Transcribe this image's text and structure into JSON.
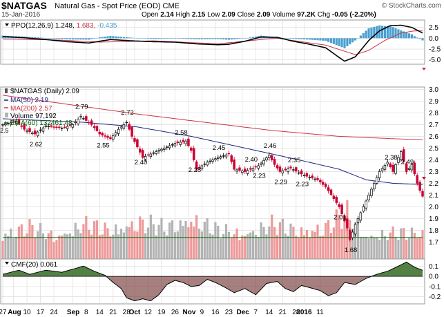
{
  "header": {
    "symbol": "$NATGAS",
    "name": "Natural Gas - Spot Price (EOD)",
    "exchange": "CME",
    "date": "15-Jan-2016",
    "open_label": "Open",
    "open": "2.14",
    "high_label": "High",
    "high": "2.15",
    "low_label": "Low",
    "low": "2.09",
    "close_label": "Close",
    "close": "2.09",
    "volume_label": "Volume",
    "volume": "97.2K",
    "chg_label": "Chg",
    "chg": "-0.05 (-2.20%)",
    "brand": "© StockCharts.com"
  },
  "colors": {
    "up": "#000000",
    "down": "#cc0033",
    "ma50": "#1a237e",
    "ma200": "#cc3344",
    "ema": "#006400",
    "vol_up": "#b3b3b3",
    "vol_down": "#ee9999",
    "hist": "#4a9fd0",
    "cmf_pos": "#4a7a3a",
    "cmf_neg": "#6a2a2a",
    "grid": "#d8d8d8"
  },
  "chart_data": [
    {
      "type": "line",
      "panel": "ppo",
      "legend": [
        "PPO(12,26,9) 1.248, 1.683, -0.435"
      ],
      "legend_parts": {
        "label": "PPO(12,26,9) 1.248,",
        "signal": "1.683,",
        "hist": "-0.435"
      },
      "ylim": [
        -6,
        4.2
      ],
      "yticks": [
        "2.5",
        "0.0",
        "-2.5",
        "-5.0"
      ],
      "ytick_values": [
        2.5,
        0,
        -2.5,
        -5
      ],
      "ppo_anchors": [
        [
          0,
          0.4
        ],
        [
          8,
          0.1
        ],
        [
          16,
          -0.3
        ],
        [
          24,
          -0.8
        ],
        [
          32,
          -1.1
        ],
        [
          40,
          -0.3
        ],
        [
          48,
          -0.6
        ],
        [
          56,
          -0.8
        ],
        [
          64,
          -0.9
        ],
        [
          72,
          -1.3
        ],
        [
          80,
          -1.5
        ],
        [
          84,
          -1.4
        ],
        [
          90,
          -0.7
        ],
        [
          96,
          0.3
        ],
        [
          102,
          0.2
        ],
        [
          108,
          -0.7
        ],
        [
          114,
          -1.4
        ],
        [
          120,
          -2.2
        ],
        [
          124,
          -4.0
        ],
        [
          127,
          -5.3
        ],
        [
          131,
          -4.3
        ],
        [
          136,
          -0.5
        ],
        [
          140,
          1.7
        ],
        [
          144,
          2.9
        ],
        [
          148,
          3.0
        ],
        [
          152,
          2.5
        ],
        [
          156,
          1.2
        ]
      ],
      "signal_anchors": [
        [
          0,
          -0.2
        ],
        [
          20,
          -0.4
        ],
        [
          36,
          -0.9
        ],
        [
          56,
          -0.6
        ],
        [
          80,
          -1.3
        ],
        [
          96,
          -0.3
        ],
        [
          102,
          0.0
        ],
        [
          112,
          -0.9
        ],
        [
          120,
          -1.6
        ],
        [
          126,
          -2.8
        ],
        [
          131,
          -3.8
        ],
        [
          136,
          -2.8
        ],
        [
          142,
          -0.5
        ],
        [
          148,
          1.2
        ],
        [
          153,
          1.7
        ],
        [
          156,
          1.7
        ]
      ]
    },
    {
      "type": "candlestick",
      "panel": "price",
      "legend": [
        "$NATGAS (Daily) 2.09",
        "MA(50) 2.19",
        "MA(200) 2.57",
        "Volume 97,192",
        "EMA(60) 132461.48"
      ],
      "legend_parts": {
        "price": "$NATGAS (Daily) 2.09",
        "ma50": "MA(50) 2.19",
        "ma200": "MA(200) 2.57",
        "vol": "Volume 97,192",
        "ema": "EMA(60) 132461.48"
      },
      "ylim": [
        1.55,
        3.02
      ],
      "yticks": [
        "3.0",
        "2.9",
        "2.8",
        "2.7",
        "2.6",
        "2.5",
        "2.4",
        "2.3",
        "2.2",
        "2.1",
        "2.0",
        "1.9",
        "1.8",
        "1.7"
      ],
      "ytick_values": [
        3.0,
        2.9,
        2.8,
        2.7,
        2.6,
        2.5,
        2.4,
        2.3,
        2.2,
        2.1,
        2.0,
        1.9,
        1.8,
        1.7
      ],
      "left_edge_label": "2.5",
      "close_anchors": [
        [
          0,
          2.7
        ],
        [
          5,
          2.73
        ],
        [
          8,
          2.66
        ],
        [
          12,
          2.62
        ],
        [
          16,
          2.69
        ],
        [
          22,
          2.67
        ],
        [
          26,
          2.7
        ],
        [
          29,
          2.77
        ],
        [
          33,
          2.7
        ],
        [
          36,
          2.62
        ],
        [
          40,
          2.58
        ],
        [
          43,
          2.66
        ],
        [
          46,
          2.72
        ],
        [
          48,
          2.6
        ],
        [
          52,
          2.42
        ],
        [
          56,
          2.46
        ],
        [
          60,
          2.5
        ],
        [
          64,
          2.54
        ],
        [
          68,
          2.56
        ],
        [
          70,
          2.48
        ],
        [
          72,
          2.32
        ],
        [
          76,
          2.38
        ],
        [
          80,
          2.42
        ],
        [
          84,
          2.45
        ],
        [
          86,
          2.32
        ],
        [
          90,
          2.3
        ],
        [
          95,
          2.35
        ],
        [
          99,
          2.44
        ],
        [
          101,
          2.36
        ],
        [
          103,
          2.3
        ],
        [
          107,
          2.33
        ],
        [
          110,
          2.29
        ],
        [
          113,
          2.26
        ],
        [
          117,
          2.23
        ],
        [
          120,
          2.17
        ],
        [
          123,
          2.07
        ],
        [
          125,
          2.0
        ],
        [
          128,
          1.82
        ],
        [
          129,
          1.72
        ],
        [
          131,
          1.85
        ],
        [
          134,
          2.0
        ],
        [
          137,
          2.15
        ],
        [
          140,
          2.3
        ],
        [
          143,
          2.38
        ],
        [
          145,
          2.3
        ],
        [
          147,
          2.42
        ],
        [
          148,
          2.47
        ],
        [
          150,
          2.3
        ],
        [
          152,
          2.36
        ],
        [
          154,
          2.2
        ],
        [
          155,
          2.14
        ],
        [
          156,
          2.09
        ]
      ],
      "ma50_anchors": [
        [
          0,
          2.75
        ],
        [
          30,
          2.72
        ],
        [
          50,
          2.68
        ],
        [
          70,
          2.6
        ],
        [
          90,
          2.5
        ],
        [
          110,
          2.4
        ],
        [
          125,
          2.32
        ],
        [
          135,
          2.23
        ],
        [
          145,
          2.2
        ],
        [
          156,
          2.19
        ]
      ],
      "ma200_anchors": [
        [
          0,
          2.95
        ],
        [
          25,
          2.87
        ],
        [
          50,
          2.79
        ],
        [
          75,
          2.72
        ],
        [
          100,
          2.65
        ],
        [
          125,
          2.6
        ],
        [
          145,
          2.58
        ],
        [
          156,
          2.57
        ]
      ],
      "annotations": [
        {
          "i": 12,
          "label": "2.62",
          "pos": "below"
        },
        {
          "i": 29,
          "label": "2.79",
          "pos": "above"
        },
        {
          "i": 37,
          "label": "2.55",
          "pos": "below"
        },
        {
          "i": 46,
          "label": "2.72",
          "pos": "above"
        },
        {
          "i": 51,
          "label": "2.40",
          "pos": "below"
        },
        {
          "i": 66,
          "label": "2.58",
          "pos": "above"
        },
        {
          "i": 71,
          "label": "2.28",
          "pos": "below"
        },
        {
          "i": 80,
          "label": "2.45",
          "pos": "above"
        },
        {
          "i": 92,
          "label": "2.40",
          "pos": "above"
        },
        {
          "i": 99,
          "label": "2.46",
          "pos": "above"
        },
        {
          "i": 95,
          "label": "2.23",
          "pos": "below"
        },
        {
          "i": 103,
          "label": "2.29",
          "pos": "below"
        },
        {
          "i": 108,
          "label": "2.35",
          "pos": "above"
        },
        {
          "i": 111,
          "label": "2.23",
          "pos": "below"
        },
        {
          "i": 125,
          "label": "2.01",
          "pos": "below"
        },
        {
          "i": 129,
          "label": "1.68",
          "pos": "below"
        },
        {
          "i": 144,
          "label": "2.38",
          "pos": "above"
        },
        {
          "i": 150,
          "label": "2.49",
          "pos": "above"
        }
      ],
      "volume_anchors": [
        [
          0,
          0.45
        ],
        [
          10,
          0.55
        ],
        [
          20,
          0.4
        ],
        [
          30,
          0.6
        ],
        [
          40,
          0.5
        ],
        [
          50,
          0.65
        ],
        [
          60,
          0.55
        ],
        [
          70,
          0.7
        ],
        [
          80,
          0.5
        ],
        [
          90,
          0.45
        ],
        [
          100,
          0.6
        ],
        [
          110,
          0.5
        ],
        [
          120,
          0.55
        ],
        [
          128,
          0.8
        ],
        [
          135,
          0.4
        ],
        [
          145,
          0.45
        ],
        [
          156,
          0.45
        ]
      ],
      "ema_level": 0.45
    },
    {
      "type": "area",
      "panel": "cmf",
      "legend": [
        "CMF(20) 0.061"
      ],
      "ylim": [
        -0.27,
        0.17
      ],
      "yticks": [
        "0.1",
        "0.0",
        "-0.1",
        "-0.2"
      ],
      "ytick_values": [
        0.1,
        0.0,
        -0.1,
        -0.2
      ],
      "cmf_anchors": [
        [
          0,
          0.02
        ],
        [
          6,
          0.06
        ],
        [
          10,
          0.02
        ],
        [
          16,
          0.06
        ],
        [
          22,
          0.04
        ],
        [
          30,
          0.1
        ],
        [
          34,
          0.05
        ],
        [
          38,
          0.01
        ],
        [
          41,
          -0.06
        ],
        [
          44,
          -0.12
        ],
        [
          46,
          -0.21
        ],
        [
          49,
          -0.24
        ],
        [
          52,
          -0.22
        ],
        [
          55,
          -0.24
        ],
        [
          58,
          -0.18
        ],
        [
          61,
          -0.08
        ],
        [
          64,
          -0.04
        ],
        [
          67,
          -0.06
        ],
        [
          70,
          -0.1
        ],
        [
          73,
          -0.09
        ],
        [
          76,
          -0.03
        ],
        [
          79,
          -0.06
        ],
        [
          82,
          -0.1
        ],
        [
          86,
          -0.16
        ],
        [
          90,
          -0.12
        ],
        [
          94,
          -0.18
        ],
        [
          98,
          -0.07
        ],
        [
          102,
          -0.05
        ],
        [
          105,
          -0.12
        ],
        [
          108,
          -0.15
        ],
        [
          111,
          -0.09
        ],
        [
          114,
          -0.11
        ],
        [
          118,
          -0.14
        ],
        [
          121,
          -0.19
        ],
        [
          124,
          -0.16
        ],
        [
          127,
          -0.06
        ],
        [
          131,
          -0.08
        ],
        [
          135,
          -0.02
        ],
        [
          139,
          0.02
        ],
        [
          143,
          0.05
        ],
        [
          147,
          0.1
        ],
        [
          150,
          0.14
        ],
        [
          153,
          0.09
        ],
        [
          156,
          0.06
        ]
      ]
    }
  ],
  "xaxis": {
    "labels": [
      {
        "i": 0,
        "t": "27",
        "b": false
      },
      {
        "i": 4,
        "t": "Aug",
        "b": true
      },
      {
        "i": 9,
        "t": "10",
        "b": false
      },
      {
        "i": 14,
        "t": "17",
        "b": false
      },
      {
        "i": 19,
        "t": "24",
        "b": false
      },
      {
        "i": 26,
        "t": "Sep",
        "b": true
      },
      {
        "i": 31,
        "t": "8",
        "b": false
      },
      {
        "i": 36,
        "t": "14",
        "b": false
      },
      {
        "i": 41,
        "t": "21",
        "b": false
      },
      {
        "i": 46,
        "t": "28",
        "b": false
      },
      {
        "i": 49,
        "t": "Oct",
        "b": true
      },
      {
        "i": 54,
        "t": "12",
        "b": false
      },
      {
        "i": 59,
        "t": "19",
        "b": false
      },
      {
        "i": 64,
        "t": "26",
        "b": false
      },
      {
        "i": 69,
        "t": "Nov",
        "b": true
      },
      {
        "i": 74,
        "t": "9",
        "b": false
      },
      {
        "i": 79,
        "t": "16",
        "b": false
      },
      {
        "i": 84,
        "t": "23",
        "b": false
      },
      {
        "i": 89,
        "t": "Dec",
        "b": true
      },
      {
        "i": 94,
        "t": "7",
        "b": false
      },
      {
        "i": 99,
        "t": "14",
        "b": false
      },
      {
        "i": 104,
        "t": "21",
        "b": false
      },
      {
        "i": 109,
        "t": "28",
        "b": false
      },
      {
        "i": 112,
        "t": "2016",
        "b": true
      },
      {
        "i": 118,
        "t": "11",
        "b": false
      }
    ],
    "count": 157
  }
}
